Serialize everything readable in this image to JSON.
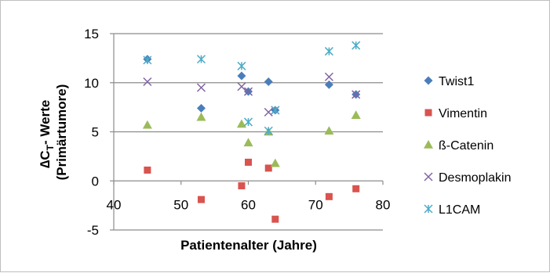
{
  "chart_data": {
    "type": "scatter",
    "title": "",
    "xlabel": "Patientenalter (Jahre)",
    "ylabel_line1": "∆C",
    "ylabel_sub": "T",
    "ylabel_rest": "- Werte",
    "ylabel_line2": "(Primärtumore)",
    "xlim": [
      40,
      80
    ],
    "ylim": [
      -5,
      15
    ],
    "x_ticks": [
      40,
      50,
      60,
      70,
      80
    ],
    "y_ticks": [
      -5,
      0,
      5,
      10,
      15
    ],
    "x_tick_labels": [
      "40",
      "50",
      "60",
      "70",
      "80"
    ],
    "y_tick_labels": [
      "-5",
      "0",
      "5",
      "10",
      "15"
    ],
    "grid": "horizontal",
    "legend_position": "right",
    "series": [
      {
        "name": "Twist1",
        "marker": "diamond",
        "color": "#4a7ebb",
        "points": [
          [
            45,
            12.4
          ],
          [
            53,
            7.4
          ],
          [
            59,
            10.7
          ],
          [
            60,
            9.1
          ],
          [
            63,
            10.1
          ],
          [
            64,
            7.2
          ],
          [
            72,
            9.8
          ],
          [
            76,
            8.8
          ]
        ]
      },
      {
        "name": "Vimentin",
        "marker": "square",
        "color": "#d9534f",
        "points": [
          [
            45,
            1.1
          ],
          [
            53,
            -1.9
          ],
          [
            59,
            -0.5
          ],
          [
            60,
            1.9
          ],
          [
            63,
            1.3
          ],
          [
            64,
            -3.9
          ],
          [
            72,
            -1.6
          ],
          [
            76,
            -0.8
          ]
        ]
      },
      {
        "name": "ß-Catenin",
        "marker": "triangle",
        "color": "#9bbb59",
        "points": [
          [
            45,
            5.7
          ],
          [
            53,
            6.5
          ],
          [
            59,
            5.8
          ],
          [
            60,
            3.9
          ],
          [
            63,
            5.0
          ],
          [
            64,
            1.8
          ],
          [
            72,
            5.1
          ],
          [
            76,
            6.7
          ]
        ]
      },
      {
        "name": "Desmoplakin",
        "marker": "x",
        "color": "#8064a2",
        "points": [
          [
            45,
            10.1
          ],
          [
            53,
            9.5
          ],
          [
            59,
            9.6
          ],
          [
            60,
            9.1
          ],
          [
            63,
            7.0
          ],
          [
            64,
            7.2
          ],
          [
            72,
            10.6
          ],
          [
            76,
            8.8
          ]
        ]
      },
      {
        "name": "L1CAM",
        "marker": "star",
        "color": "#4bacc6",
        "points": [
          [
            45,
            12.3
          ],
          [
            53,
            12.4
          ],
          [
            59,
            11.7
          ],
          [
            60,
            6.0
          ],
          [
            63,
            5.1
          ],
          [
            64,
            7.2
          ],
          [
            72,
            13.2
          ],
          [
            76,
            13.8
          ]
        ]
      }
    ]
  }
}
